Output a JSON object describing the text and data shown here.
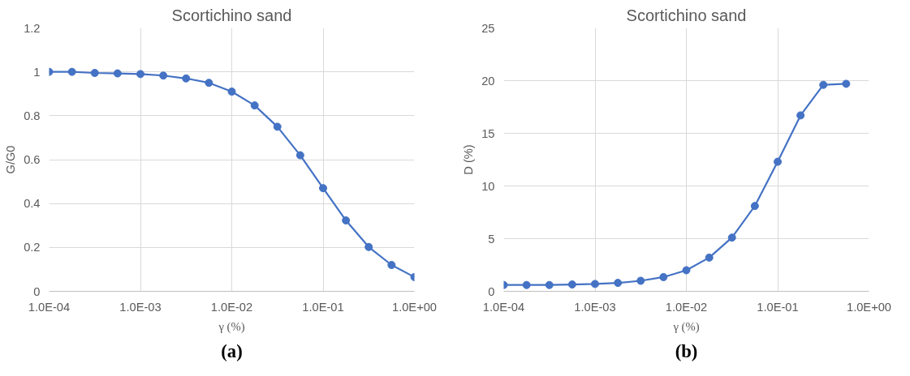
{
  "chart_data": [
    {
      "type": "line",
      "title": "Scortichino sand",
      "xlabel": "γ (%)",
      "ylabel": "G/G0",
      "log": "x",
      "grid": true,
      "marker": "circle",
      "line_style": "solid",
      "x": [
        0.0001,
        0.000178,
        0.000316,
        0.000562,
        0.001,
        0.00178,
        0.00316,
        0.00562,
        0.01,
        0.0178,
        0.0316,
        0.0562,
        0.1,
        0.178,
        0.316,
        0.562,
        1
      ],
      "series": [
        {
          "color": "#4472c4",
          "values": [
            1.0,
            1.0,
            0.995,
            0.993,
            0.99,
            0.983,
            0.97,
            0.95,
            0.91,
            0.847,
            0.75,
            0.62,
            0.47,
            0.323,
            0.202,
            0.12,
            0.065
          ]
        }
      ],
      "xlim": [
        0.0001,
        1
      ],
      "ylim": [
        0,
        1.2
      ],
      "xticks": [
        {
          "value": 0.0001,
          "label": "1.0E-04"
        },
        {
          "value": 0.001,
          "label": "1.0E-03"
        },
        {
          "value": 0.01,
          "label": "1.0E-02"
        },
        {
          "value": 0.1,
          "label": "1.0E-01"
        },
        {
          "value": 1,
          "label": "1.0E+00"
        }
      ],
      "yticks": [
        0,
        0.2,
        0.4,
        0.6,
        0.8,
        1,
        1.2
      ],
      "annotations": [
        "(a)"
      ]
    },
    {
      "type": "line",
      "title": "Scortichino sand",
      "xlabel": "γ (%)",
      "ylabel": "D (%)",
      "log": "x",
      "grid": true,
      "marker": "circle",
      "line_style": "solid",
      "x": [
        0.0001,
        0.000178,
        0.000316,
        0.000562,
        0.001,
        0.00178,
        0.00316,
        0.00562,
        0.01,
        0.0178,
        0.0316,
        0.0562,
        0.1,
        0.178,
        0.316,
        0.562
      ],
      "series": [
        {
          "color": "#4472c4",
          "values": [
            0.6,
            0.6,
            0.6,
            0.65,
            0.7,
            0.8,
            1.0,
            1.35,
            2.0,
            3.2,
            5.1,
            8.1,
            12.3,
            16.7,
            19.6,
            19.7
          ]
        }
      ],
      "xlim": [
        0.0001,
        1
      ],
      "ylim": [
        0,
        25
      ],
      "xticks": [
        {
          "value": 0.0001,
          "label": "1.0E-04"
        },
        {
          "value": 0.001,
          "label": "1.0E-03"
        },
        {
          "value": 0.01,
          "label": "1.0E-02"
        },
        {
          "value": 0.1,
          "label": "1.0E-01"
        },
        {
          "value": 1,
          "label": "1.0E+00"
        }
      ],
      "yticks": [
        0,
        5,
        10,
        15,
        20,
        25
      ],
      "annotations": [
        "(b)"
      ]
    }
  ]
}
